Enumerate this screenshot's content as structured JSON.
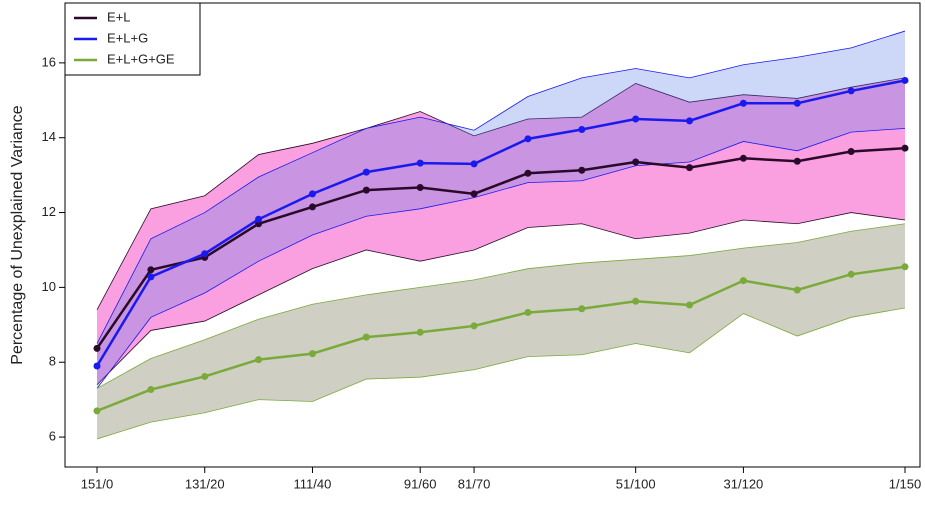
{
  "chart_data": {
    "type": "line",
    "y_label": "Percentage of Unexplained Variance",
    "categories": [
      "151/0",
      null,
      "131/20",
      null,
      "111/40",
      null,
      "91/60",
      "81/70",
      null,
      null,
      "51/100",
      null,
      "31/120",
      null,
      null,
      "1/150"
    ],
    "ylim": [
      5.2,
      17.6
    ],
    "yticks": [
      6,
      8,
      10,
      12,
      14,
      16
    ],
    "legend": "top-left",
    "series": [
      {
        "name": "E+L",
        "color": "#2a0a2a",
        "band_color": "#fa9fe0",
        "values": [
          8.37,
          10.47,
          10.8,
          11.7,
          12.15,
          12.6,
          12.67,
          12.5,
          13.05,
          13.13,
          13.35,
          13.2,
          13.45,
          13.37,
          13.63,
          13.72
        ],
        "upper": [
          9.4,
          12.1,
          12.45,
          13.55,
          13.85,
          14.25,
          14.7,
          14.05,
          14.5,
          14.55,
          15.45,
          14.95,
          15.15,
          15.05,
          15.35,
          15.6
        ],
        "lower": [
          7.4,
          8.85,
          9.1,
          9.8,
          10.5,
          11.0,
          10.7,
          11.0,
          11.6,
          11.7,
          11.3,
          11.45,
          11.8,
          11.7,
          12.0,
          11.8
        ]
      },
      {
        "name": "E+L+G",
        "color": "#1a1aee",
        "band_color": "#5a7ce8",
        "values": [
          7.9,
          10.28,
          10.9,
          11.82,
          12.5,
          13.08,
          13.32,
          13.3,
          13.97,
          14.22,
          14.5,
          14.45,
          14.92,
          14.92,
          15.25,
          15.53
        ],
        "upper": [
          8.5,
          11.3,
          12.0,
          12.95,
          13.6,
          14.25,
          14.55,
          14.2,
          15.1,
          15.6,
          15.85,
          15.6,
          15.95,
          16.15,
          16.4,
          16.85
        ],
        "lower": [
          7.3,
          9.2,
          9.85,
          10.7,
          11.4,
          11.9,
          12.1,
          12.4,
          12.8,
          12.85,
          13.25,
          13.35,
          13.9,
          13.65,
          14.15,
          14.25
        ]
      },
      {
        "name": "E+L+G+GE",
        "color": "#7aaa3a",
        "band_color": "#cfcfc4",
        "values": [
          6.7,
          7.27,
          7.62,
          8.07,
          8.23,
          8.67,
          8.8,
          8.97,
          9.33,
          9.43,
          9.63,
          9.53,
          10.18,
          9.93,
          10.35,
          10.55
        ],
        "upper": [
          7.3,
          8.1,
          8.6,
          9.15,
          9.55,
          9.8,
          10.0,
          10.2,
          10.5,
          10.65,
          10.75,
          10.85,
          11.05,
          11.2,
          11.5,
          11.7
        ],
        "lower": [
          5.95,
          6.4,
          6.65,
          7.0,
          6.95,
          7.55,
          7.6,
          7.8,
          8.15,
          8.2,
          8.5,
          8.25,
          9.3,
          8.7,
          9.2,
          9.45
        ]
      }
    ]
  }
}
